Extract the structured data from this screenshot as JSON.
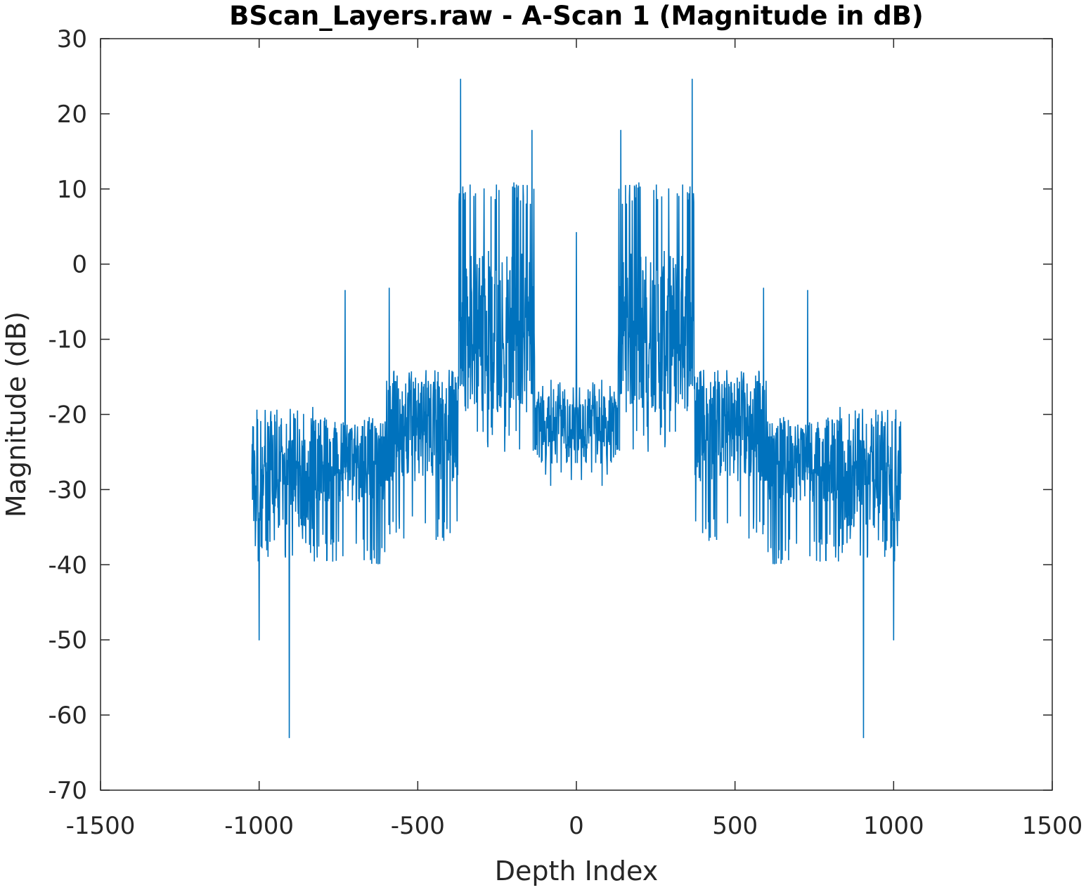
{
  "chart_data": {
    "type": "line",
    "title": "BScan_Layers.raw - A-Scan 1 (Magnitude in dB)",
    "xlabel": "Depth Index",
    "ylabel": "Magnitude (dB)",
    "xlim": [
      -1500,
      1500
    ],
    "ylim": [
      -70,
      30
    ],
    "xticks": [
      -1500,
      -1000,
      -500,
      0,
      500,
      1000,
      1500
    ],
    "yticks": [
      30,
      20,
      10,
      0,
      -10,
      -20,
      -30,
      -40,
      -50,
      -60,
      -70
    ],
    "x_tick_labels": [
      "-1500",
      "-1000",
      "-500",
      "0",
      "500",
      "1000",
      "1500"
    ],
    "y_tick_labels": [
      "30",
      "20",
      "10",
      "0",
      "-10",
      "-20",
      "-30",
      "-40",
      "-50",
      "-60",
      "-70"
    ],
    "grid": false,
    "legend": "none",
    "series": [
      {
        "color": "#0072BD",
        "x_range": [
          -1024,
          1023
        ],
        "notable_points": [
          {
            "x": -1022,
            "y": -24
          },
          {
            "x": -1000,
            "y": -50
          },
          {
            "x": -905,
            "y": -63
          },
          {
            "x": -729,
            "y": -3.5
          },
          {
            "x": -590,
            "y": -3.2
          },
          {
            "x": -365,
            "y": 24.6
          },
          {
            "x": -140,
            "y": 17.8
          },
          {
            "x": 0,
            "y": 4.2
          },
          {
            "x": 140,
            "y": 17.8
          },
          {
            "x": 365,
            "y": 24.6
          },
          {
            "x": 590,
            "y": -3.2
          },
          {
            "x": 729,
            "y": -3.5
          },
          {
            "x": 905,
            "y": -63
          },
          {
            "x": 1000,
            "y": -50
          },
          {
            "x": 1022,
            "y": -21
          }
        ],
        "envelope": [
          {
            "x_from": -1024,
            "x_to": -830,
            "y_low": -40,
            "y_high": -19,
            "mean": -29
          },
          {
            "x_from": -830,
            "x_to": -600,
            "y_low": -40,
            "y_high": -21,
            "mean": -26
          },
          {
            "x_from": -600,
            "x_to": -370,
            "y_low": -37,
            "y_high": -14,
            "mean": -22
          },
          {
            "x_from": -370,
            "x_to": -130,
            "y_low": -25,
            "y_high": 11,
            "mean": -9
          },
          {
            "x_from": -130,
            "x_to": 130,
            "y_low": -30,
            "y_high": -15,
            "mean": -22
          },
          {
            "x_from": 130,
            "x_to": 370,
            "y_low": -25,
            "y_high": 11,
            "mean": -9
          },
          {
            "x_from": 370,
            "x_to": 600,
            "y_low": -37,
            "y_high": -14,
            "mean": -22
          },
          {
            "x_from": 600,
            "x_to": 830,
            "y_low": -40,
            "y_high": -21,
            "mean": -26
          },
          {
            "x_from": 830,
            "x_to": 1023,
            "y_low": -40,
            "y_high": -19,
            "mean": -29
          }
        ]
      }
    ]
  }
}
